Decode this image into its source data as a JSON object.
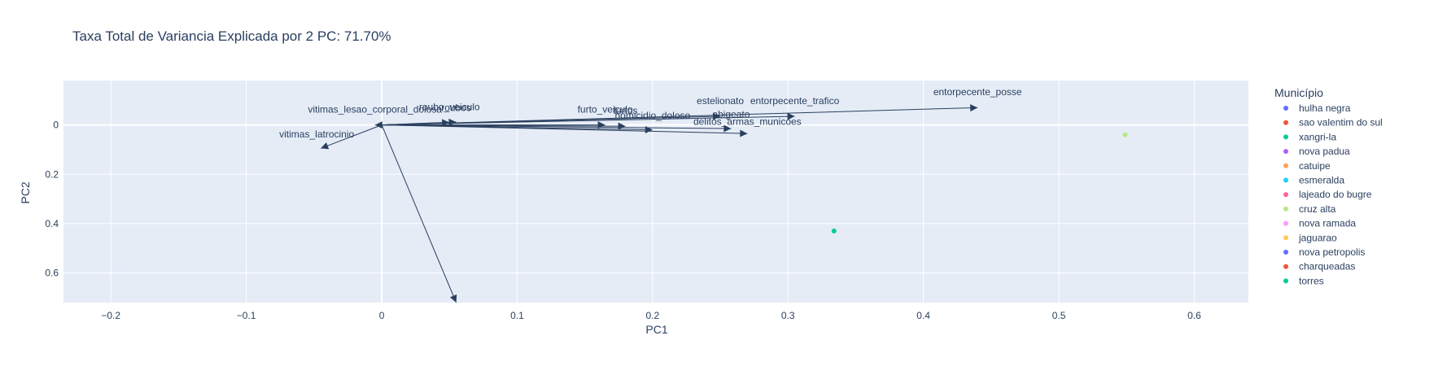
{
  "chart_data": {
    "type": "scatter",
    "title": "Taxa Total de Variancia Explicada por 2 PC: 71.70%",
    "xlabel": "PC1",
    "ylabel": "PC2",
    "xlim": [
      -0.235,
      0.64
    ],
    "ylim": [
      0.72,
      -0.18
    ],
    "x_ticks": [
      -0.2,
      -0.1,
      0,
      0.1,
      0.2,
      0.3,
      0.4,
      0.5,
      0.6
    ],
    "x_tick_labels": [
      "−0.2",
      "−0.1",
      "0",
      "0.1",
      "0.2",
      "0.3",
      "0.4",
      "0.5",
      "0.6"
    ],
    "y_ticks": [
      0,
      0.2,
      0.4,
      0.6
    ],
    "y_tick_labels": [
      "0",
      "0.2",
      "0.4",
      "0.6"
    ],
    "grid": true,
    "legend_title": "Município",
    "legend_position": "right",
    "series": [
      {
        "name": "hulha negra",
        "color": "#636efa",
        "points": []
      },
      {
        "name": "sao valentim do sul",
        "color": "#EF553B",
        "points": []
      },
      {
        "name": "xangri-la",
        "color": "#00cc96",
        "points": []
      },
      {
        "name": "nova padua",
        "color": "#ab63fa",
        "points": []
      },
      {
        "name": "catuipe",
        "color": "#FFA15A",
        "points": []
      },
      {
        "name": "esmeralda",
        "color": "#19d3f3",
        "points": []
      },
      {
        "name": "lajeado do bugre",
        "color": "#FF6692",
        "points": []
      },
      {
        "name": "cruz alta",
        "color": "#B6E880",
        "points": [
          [
            0.549,
            0.04
          ]
        ]
      },
      {
        "name": "nova ramada",
        "color": "#FF97FF",
        "points": []
      },
      {
        "name": "jaguarao",
        "color": "#FECB52",
        "points": []
      },
      {
        "name": "nova petropolis",
        "color": "#636efa",
        "points": []
      },
      {
        "name": "charqueadas",
        "color": "#EF553B",
        "points": []
      },
      {
        "name": "torres",
        "color": "#00cc96",
        "points": [
          [
            0.334,
            0.43
          ]
        ]
      }
    ],
    "loadings": [
      {
        "label": "entorpecente_posse",
        "x": 0.44,
        "y": -0.07
      },
      {
        "label": "entorpecente_trafico",
        "x": 0.305,
        "y": -0.035
      },
      {
        "label": "estelionato",
        "x": 0.25,
        "y": -0.035
      },
      {
        "label": "delitos_armas_municoes",
        "x": 0.27,
        "y": 0.035
      },
      {
        "label": "homicidio_doloso",
        "x": 0.2,
        "y": 0.02
      },
      {
        "label": "abigeato",
        "x": 0.258,
        "y": 0.015
      },
      {
        "label": "furto_veiculo",
        "x": 0.165,
        "y": 0.0
      },
      {
        "label": "furtos",
        "x": 0.18,
        "y": 0.005
      },
      {
        "label": "roubo_veiculo",
        "x": 0.05,
        "y": -0.01
      },
      {
        "label": "roubos",
        "x": 0.055,
        "y": -0.012
      },
      {
        "label": "vitimas_lesao_corporal_dolosa",
        "x": -0.005,
        "y": 0.0
      },
      {
        "label": "vitimas_latrocinio",
        "x": -0.045,
        "y": 0.095
      },
      {
        "label": "",
        "x": 0.055,
        "y": 0.72
      }
    ],
    "annotations": [
      {
        "text": "entorpecente_posse",
        "x": 0.44,
        "y": -0.12
      },
      {
        "text": "entorpecente_trafico",
        "x": 0.305,
        "y": -0.085
      },
      {
        "text": "estelionato",
        "x": 0.25,
        "y": -0.085
      },
      {
        "text": "delitos_armas_municoes",
        "x": 0.27,
        "y": 0.0
      },
      {
        "text": "homicidio_doloso",
        "x": 0.2,
        "y": -0.025
      },
      {
        "text": "abigeato",
        "x": 0.258,
        "y": -0.03
      },
      {
        "text": "furto_veiculo",
        "x": 0.165,
        "y": -0.05
      },
      {
        "text": "furtos",
        "x": 0.18,
        "y": -0.045
      },
      {
        "text": "roubo_veiculo",
        "x": 0.05,
        "y": -0.06
      },
      {
        "text": "roubos",
        "x": 0.055,
        "y": -0.057
      },
      {
        "text": "vitimas_lesao_corporal_dolosa",
        "x": -0.005,
        "y": -0.05
      },
      {
        "text": "vitimas_latrocinio",
        "x": -0.048,
        "y": 0.05
      }
    ]
  }
}
